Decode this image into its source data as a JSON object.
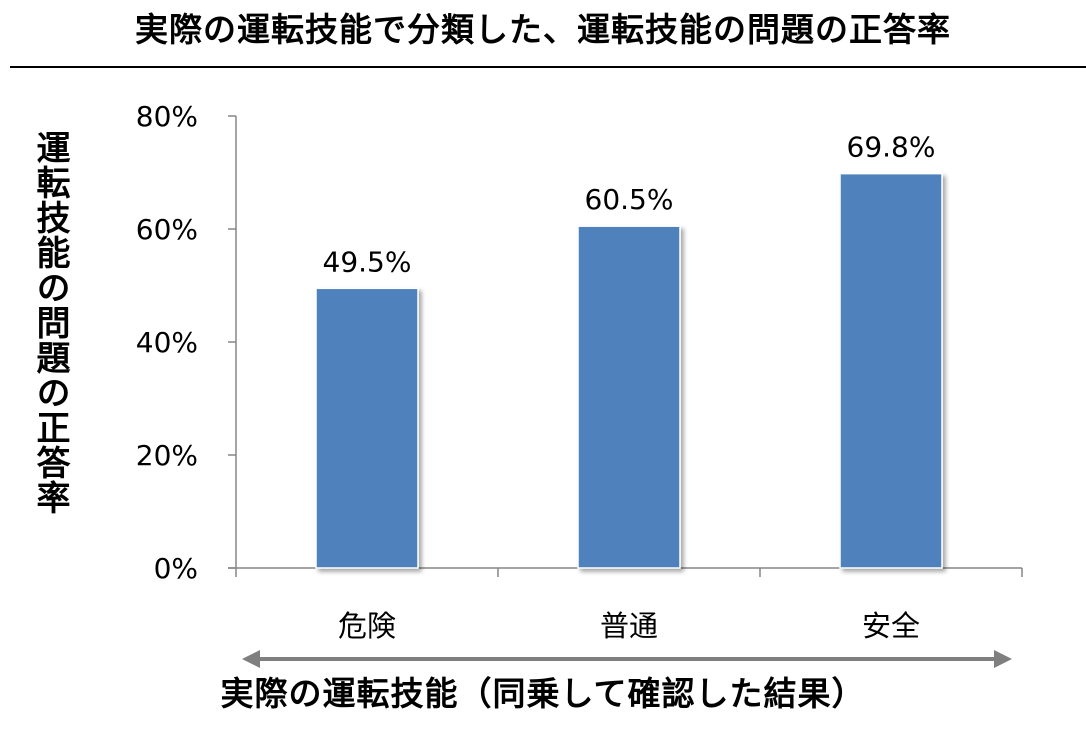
{
  "chart_data": {
    "type": "bar",
    "title": "実際の運転技能で分類した、運転技能の問題の正答率",
    "xlabel": "実際の運転技能（同乗して確認した結果）",
    "ylabel": "運転技能の問題の正答率",
    "categories": [
      "危険",
      "普通",
      "安全"
    ],
    "values": [
      49.5,
      60.5,
      69.8
    ],
    "value_labels": [
      "49.5%",
      "60.5%",
      "69.8%"
    ],
    "ylim": [
      0,
      80
    ],
    "yticks": [
      0,
      20,
      40,
      60,
      80
    ],
    "ytick_labels": [
      "0%",
      "20%",
      "40%",
      "60%",
      "80%"
    ],
    "grid": false,
    "legend": "none",
    "bar_color": "#4f81bd",
    "axis_color": "#868686",
    "arrow_color": "#7f7f7f"
  }
}
